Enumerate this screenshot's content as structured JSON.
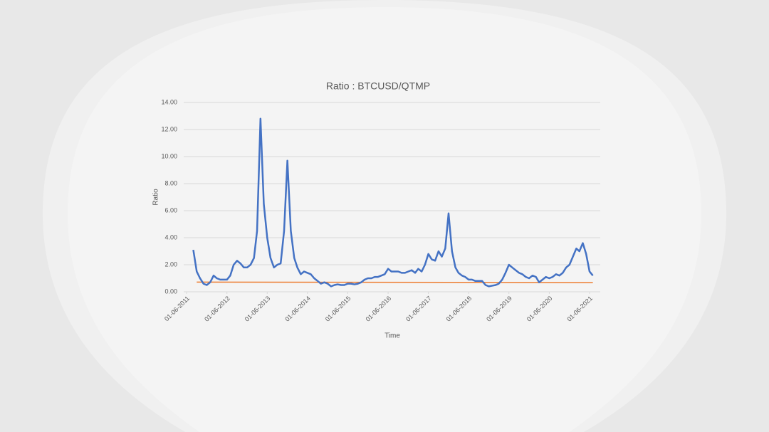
{
  "chart_data": {
    "type": "line",
    "title": "Ratio : BTCUSD/QTMP",
    "x_label": "Time",
    "y_label": "Ratio",
    "xlim": [
      "2011-05-06",
      "2021-09-06"
    ],
    "xticks": [
      {
        "value": "2011-06-01",
        "label": "01-06-2011"
      },
      {
        "value": "2012-06-01",
        "label": "01-06-2012"
      },
      {
        "value": "2013-06-01",
        "label": "01-06-2013"
      },
      {
        "value": "2014-06-01",
        "label": "01-06-2014"
      },
      {
        "value": "2015-06-01",
        "label": "01-06-2015"
      },
      {
        "value": "2016-06-01",
        "label": "01-06-2016"
      },
      {
        "value": "2017-06-01",
        "label": "01-06-2017"
      },
      {
        "value": "2018-06-01",
        "label": "01-06-2018"
      },
      {
        "value": "2019-06-01",
        "label": "01-06-2019"
      },
      {
        "value": "2020-06-01",
        "label": "01-06-2020"
      },
      {
        "value": "2021-06-01",
        "label": "01-06-2021"
      }
    ],
    "ylim": [
      0,
      14
    ],
    "yticks": [
      {
        "value": 0,
        "label": "0.00"
      },
      {
        "value": 2,
        "label": "2.00"
      },
      {
        "value": 4,
        "label": "4.00"
      },
      {
        "value": 6,
        "label": "6.00"
      },
      {
        "value": 8,
        "label": "8.00"
      },
      {
        "value": 10,
        "label": "10.00"
      },
      {
        "value": 12,
        "label": "12.00"
      },
      {
        "value": 14,
        "label": "14.00"
      }
    ],
    "grid": true,
    "x": [
      "2011-08-01",
      "2011-09-01",
      "2011-10-01",
      "2011-11-01",
      "2011-12-01",
      "2012-01-01",
      "2012-02-01",
      "2012-03-01",
      "2012-04-01",
      "2012-05-01",
      "2012-06-01",
      "2012-07-01",
      "2012-08-01",
      "2012-09-01",
      "2012-10-01",
      "2012-11-01",
      "2012-12-01",
      "2013-01-01",
      "2013-02-01",
      "2013-03-01",
      "2013-04-01",
      "2013-05-01",
      "2013-06-01",
      "2013-07-01",
      "2013-08-01",
      "2013-09-01",
      "2013-10-01",
      "2013-11-01",
      "2013-12-01",
      "2014-01-01",
      "2014-02-01",
      "2014-03-01",
      "2014-04-01",
      "2014-05-01",
      "2014-06-01",
      "2014-07-01",
      "2014-08-01",
      "2014-09-01",
      "2014-10-01",
      "2014-11-01",
      "2014-12-01",
      "2015-01-01",
      "2015-02-01",
      "2015-03-01",
      "2015-04-01",
      "2015-05-01",
      "2015-06-01",
      "2015-07-01",
      "2015-08-01",
      "2015-09-01",
      "2015-10-01",
      "2015-11-01",
      "2015-12-01",
      "2016-01-01",
      "2016-02-01",
      "2016-03-01",
      "2016-04-01",
      "2016-05-01",
      "2016-06-01",
      "2016-07-01",
      "2016-08-01",
      "2016-09-01",
      "2016-10-01",
      "2016-11-01",
      "2016-12-01",
      "2017-01-01",
      "2017-02-01",
      "2017-03-01",
      "2017-04-01",
      "2017-05-01",
      "2017-06-01",
      "2017-07-01",
      "2017-08-01",
      "2017-09-01",
      "2017-10-01",
      "2017-11-01",
      "2017-12-01",
      "2018-01-01",
      "2018-02-01",
      "2018-03-01",
      "2018-04-01",
      "2018-05-01",
      "2018-06-01",
      "2018-07-01",
      "2018-08-01",
      "2018-09-01",
      "2018-10-01",
      "2018-11-01",
      "2018-12-01",
      "2019-01-01",
      "2019-02-01",
      "2019-03-01",
      "2019-04-01",
      "2019-05-01",
      "2019-06-01",
      "2019-07-01",
      "2019-08-01",
      "2019-09-01",
      "2019-10-01",
      "2019-11-01",
      "2019-12-01",
      "2020-01-01",
      "2020-02-01",
      "2020-03-01",
      "2020-04-01",
      "2020-05-01",
      "2020-06-01",
      "2020-07-01",
      "2020-08-01",
      "2020-09-01",
      "2020-10-01",
      "2020-11-01",
      "2020-12-01",
      "2021-01-01",
      "2021-02-01",
      "2021-03-01",
      "2021-04-01",
      "2021-05-01",
      "2021-06-01",
      "2021-07-01"
    ],
    "series": [
      {
        "color": "#4472c4",
        "values": [
          3.1,
          1.5,
          1.0,
          0.6,
          0.5,
          0.7,
          1.2,
          1.0,
          0.9,
          0.9,
          0.9,
          1.2,
          2.0,
          2.3,
          2.1,
          1.8,
          1.8,
          2.0,
          2.5,
          4.5,
          12.8,
          6.5,
          4.0,
          2.5,
          1.8,
          2.0,
          2.1,
          4.5,
          9.7,
          4.5,
          2.5,
          1.8,
          1.3,
          1.5,
          1.4,
          1.3,
          1.0,
          0.8,
          0.6,
          0.7,
          0.6,
          0.4,
          0.5,
          0.55,
          0.5,
          0.5,
          0.6,
          0.6,
          0.55,
          0.6,
          0.7,
          0.9,
          1.0,
          1.0,
          1.1,
          1.1,
          1.2,
          1.3,
          1.7,
          1.5,
          1.5,
          1.5,
          1.4,
          1.4,
          1.5,
          1.6,
          1.4,
          1.7,
          1.5,
          2.0,
          2.8,
          2.4,
          2.3,
          3.0,
          2.6,
          3.2,
          5.8,
          3.0,
          1.8,
          1.4,
          1.2,
          1.1,
          0.9,
          0.9,
          0.8,
          0.8,
          0.8,
          0.5,
          0.4,
          0.45,
          0.5,
          0.6,
          0.9,
          1.4,
          2.0,
          1.8,
          1.6,
          1.4,
          1.3,
          1.1,
          1.0,
          1.2,
          1.1,
          0.7,
          0.9,
          1.1,
          1.0,
          1.1,
          1.3,
          1.2,
          1.4,
          1.8,
          2.0,
          2.6,
          3.2,
          3.0,
          3.6,
          2.8,
          1.5,
          1.2
        ]
      },
      {
        "color": "#ed7d31",
        "x": [
          "2011-09-01",
          "2021-07-01"
        ],
        "values": [
          0.72,
          0.68
        ]
      }
    ]
  }
}
